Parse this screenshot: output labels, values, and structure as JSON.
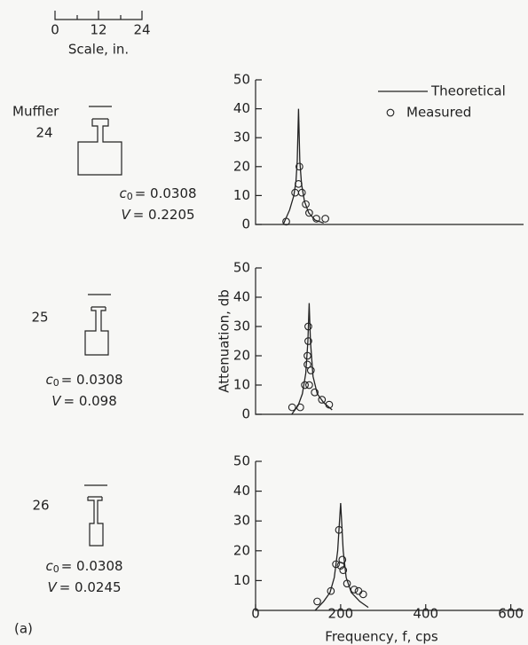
{
  "scale": {
    "ticks": [
      "0",
      "12",
      "24"
    ],
    "label": "Scale, in."
  },
  "muffler_heading": "Muffler",
  "mufflers": [
    {
      "number": "24",
      "c": "c",
      "c_sub": "0",
      "c_value": "= 0.0308",
      "v": "V",
      "v_value": "= 0.2205"
    },
    {
      "number": "25",
      "c": "c",
      "c_sub": "0",
      "c_value": "= 0.0308",
      "v": "V",
      "v_value": "= 0.098"
    },
    {
      "number": "26",
      "c": "c",
      "c_sub": "0",
      "c_value": "= 0.0308",
      "v": "V",
      "v_value": "= 0.0245"
    }
  ],
  "panel_label": "(a)",
  "chart_data": [
    {
      "type": "line",
      "xlim": [
        0,
        630
      ],
      "ylim": [
        0,
        50
      ],
      "yticks": [
        0,
        10,
        20,
        30,
        40,
        50
      ],
      "legend": "upper right",
      "series": [
        {
          "name": "Theoretical",
          "style": "line",
          "color": "#222",
          "x": [
            65,
            80,
            90,
            95,
            98,
            101,
            104,
            108,
            115,
            125,
            140,
            160
          ],
          "values": [
            0,
            5,
            10,
            15,
            22,
            40,
            22,
            14,
            8,
            4,
            1.5,
            0.5
          ]
        },
        {
          "name": "Measured",
          "style": "markers",
          "color": "#222",
          "x": [
            72,
            93,
            101,
            103,
            109,
            118,
            126,
            143,
            164
          ],
          "values": [
            1,
            11,
            14,
            20,
            11,
            7,
            4,
            2,
            2
          ]
        }
      ]
    },
    {
      "type": "line",
      "ylabel": "Attenuation, db",
      "xlim": [
        0,
        630
      ],
      "ylim": [
        0,
        50
      ],
      "yticks": [
        0,
        10,
        20,
        30,
        40,
        50
      ],
      "series": [
        {
          "style": "line",
          "color": "#222",
          "x": [
            85,
            100,
            110,
            118,
            123,
            126,
            129,
            135,
            145,
            160,
            180
          ],
          "values": [
            0,
            3,
            7,
            14,
            25,
            38,
            25,
            13,
            7,
            4,
            1.5
          ]
        },
        {
          "style": "markers",
          "color": "#222",
          "x": [
            86,
            105,
            116,
            122,
            124,
            124,
            122,
            130,
            126,
            139,
            156,
            173
          ],
          "values": [
            2.4,
            2.4,
            10,
            20,
            25,
            30,
            17,
            15,
            10,
            7.5,
            5,
            3.3
          ]
        }
      ]
    },
    {
      "type": "line",
      "xlabel": "Frequency, f, cps",
      "xlim": [
        0,
        630
      ],
      "ylim": [
        0,
        50
      ],
      "yticks": [
        10,
        20,
        30,
        40,
        50
      ],
      "xticks": [
        0,
        200,
        400,
        600
      ],
      "series": [
        {
          "style": "line",
          "color": "#222",
          "x": [
            140,
            160,
            175,
            185,
            193,
            200,
            206,
            213,
            225,
            245,
            265
          ],
          "values": [
            0,
            3,
            6,
            11,
            20,
            36,
            20,
            11,
            6,
            3,
            1
          ]
        },
        {
          "style": "markers",
          "color": "#222",
          "x": [
            145,
            177,
            189,
            196,
            200,
            204,
            206,
            215,
            232,
            242,
            253
          ],
          "values": [
            3,
            6.5,
            15.5,
            27,
            15,
            17,
            13.5,
            9,
            7,
            6.5,
            5.4
          ]
        }
      ]
    }
  ]
}
